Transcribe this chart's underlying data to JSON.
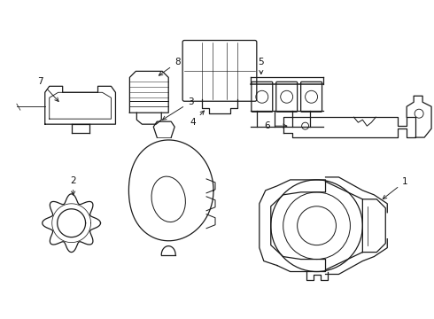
{
  "background_color": "#ffffff",
  "line_color": "#1a1a1a",
  "label_color": "#111111",
  "figsize": [
    4.9,
    3.6
  ],
  "dpi": 100
}
